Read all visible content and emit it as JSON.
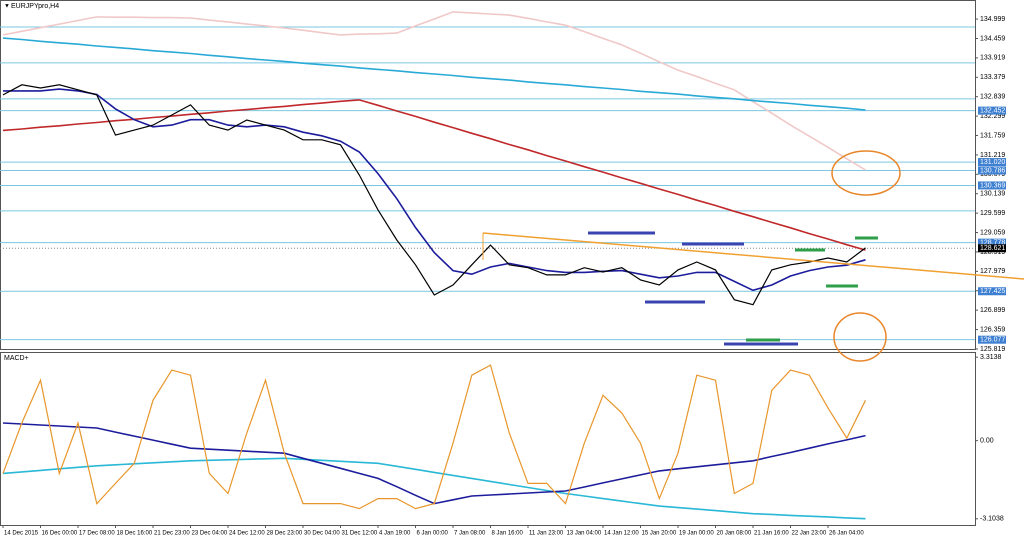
{
  "chart_data": [
    {
      "type": "line",
      "title": "EURJPYpro,H4",
      "ylim": [
        125.79,
        135.53
      ],
      "yticks": [
        134.999,
        134.459,
        133.919,
        133.379,
        132.839,
        132.299,
        131.759,
        131.219,
        130.679,
        130.139,
        129.599,
        129.059,
        128.519,
        127.979,
        127.439,
        126.899,
        126.359,
        125.819
      ],
      "levels": [
        132.452,
        {
          "value": 131.02,
          "label": "131.020"
        },
        130.786,
        130.369,
        128.778,
        127.425,
        126.077
      ],
      "level_color": "#3d7fd1",
      "hlines": [
        134.78,
        133.78,
        132.78,
        129.66
      ],
      "hline_color": "#7cc7e0",
      "current_price": 128.621,
      "series": [
        {
          "color": "#f0c8c8",
          "values": [
            134.56,
            134.66,
            134.76,
            134.86,
            134.96,
            135.06,
            135.05,
            135.05,
            135.04,
            135.04,
            135.03,
            134.97,
            134.92,
            134.86,
            134.81,
            134.75,
            134.69,
            134.62,
            134.56,
            134.58,
            134.59,
            134.61,
            134.81,
            135.0,
            135.2,
            135.17,
            135.14,
            135.11,
            135.02,
            134.92,
            134.83,
            134.65,
            134.46,
            134.28,
            134.05,
            133.81,
            133.58,
            133.4,
            133.21,
            133.03,
            132.7,
            132.38,
            132.05,
            131.74,
            131.43,
            131.11,
            130.8
          ]
        },
        {
          "color": "#29a9d6",
          "values": [
            134.47,
            134.43,
            134.38,
            134.34,
            134.3,
            134.25,
            134.21,
            134.17,
            134.12,
            134.08,
            134.04,
            133.99,
            133.95,
            133.9,
            133.86,
            133.82,
            133.77,
            133.73,
            133.69,
            133.64,
            133.6,
            133.56,
            133.51,
            133.47,
            133.43,
            133.38,
            133.34,
            133.3,
            133.25,
            133.21,
            133.17,
            133.12,
            133.08,
            133.04,
            132.99,
            132.95,
            132.91,
            132.86,
            132.82,
            132.78,
            132.73,
            132.69,
            132.65,
            132.6,
            132.56,
            132.52,
            132.47
          ]
        },
        {
          "color": "#c0282a",
          "values": [
            131.9,
            131.94,
            131.99,
            132.03,
            132.08,
            132.12,
            132.17,
            132.21,
            132.26,
            132.3,
            132.35,
            132.39,
            132.44,
            132.48,
            132.53,
            132.57,
            132.62,
            132.66,
            132.71,
            132.75,
            132.6,
            132.44,
            132.29,
            132.13,
            131.98,
            131.82,
            131.67,
            131.51,
            131.36,
            131.2,
            131.05,
            130.89,
            130.74,
            130.58,
            130.43,
            130.27,
            130.12,
            129.96,
            129.81,
            129.65,
            129.5,
            129.34,
            129.19,
            129.03,
            128.88,
            128.72,
            128.57
          ]
        },
        {
          "color": "#1c1c9c",
          "values": [
            133.0,
            133.0,
            133.0,
            133.05,
            133.0,
            132.9,
            132.5,
            132.2,
            132.0,
            132.05,
            132.2,
            132.2,
            132.05,
            132.0,
            132.05,
            132.0,
            131.85,
            131.75,
            131.6,
            131.3,
            130.7,
            130.0,
            129.2,
            128.5,
            128.0,
            127.9,
            128.1,
            128.2,
            128.1,
            128.0,
            127.95,
            127.95,
            127.98,
            128.0,
            127.9,
            127.8,
            127.85,
            127.95,
            127.95,
            127.7,
            127.45,
            127.6,
            127.85,
            128.0,
            128.1,
            128.15,
            128.3
          ]
        },
        {
          "color": "#000000",
          "values": [
            132.89,
            133.17,
            133.08,
            133.17,
            133.03,
            132.89,
            131.77,
            131.91,
            132.05,
            132.33,
            132.61,
            132.05,
            131.91,
            132.19,
            132.05,
            131.91,
            131.64,
            131.64,
            131.5,
            130.66,
            129.69,
            128.85,
            128.16,
            127.32,
            127.6,
            128.16,
            128.71,
            128.16,
            128.08,
            127.88,
            127.88,
            128.08,
            127.96,
            128.08,
            127.74,
            127.6,
            128.02,
            128.24,
            128.02,
            127.19,
            127.05,
            128.02,
            128.16,
            128.24,
            128.35,
            128.24,
            128.63
          ]
        }
      ]
    },
    {
      "type": "line",
      "title": "MACD+",
      "ylim": [
        -3.35,
        3.52
      ],
      "yticks": [
        3.3138,
        {
          "value": 0,
          "label": "0.00"
        },
        -3.1038
      ],
      "categories": [
        "14 Dec 2015",
        null,
        "16 Dec 00:00",
        null,
        "17 Dec 08:00",
        null,
        "18 Dec 16:00",
        null,
        "21 Dec 23:00",
        null,
        "23 Dec 04:00",
        null,
        "24 Dec 12:00",
        null,
        "28 Dec 23:00",
        null,
        "30 Dec 04:00",
        null,
        "31 Dec 12:00",
        null,
        "4 Jan 19:00",
        null,
        "6 Jan 00:00",
        null,
        "7 Jan 08:00",
        null,
        "8 Jan 16:00",
        null,
        "11 Jan 23:00",
        null,
        "13 Jan 04:00",
        null,
        "14 Jan 12:00",
        null,
        "15 Jan 20:00",
        null,
        "19 Jan 00:00",
        null,
        "20 Jan 08:00",
        null,
        "21 Jan 16:00",
        null,
        "22 Jan 23:00",
        null,
        "26 Jan 04:00",
        null,
        null
      ],
      "series": [
        {
          "color": "#29b8d6",
          "values": [
            -1.3,
            -1.24,
            -1.18,
            -1.12,
            -1.06,
            -1.0,
            -0.96,
            -0.92,
            -0.88,
            -0.84,
            -0.8,
            -0.78,
            -0.76,
            -0.74,
            -0.72,
            -0.7,
            -0.74,
            -0.78,
            -0.82,
            -0.86,
            -0.9,
            -1.02,
            -1.14,
            -1.26,
            -1.38,
            -1.5,
            -1.62,
            -1.74,
            -1.86,
            -1.98,
            -2.1,
            -2.2,
            -2.3,
            -2.4,
            -2.5,
            -2.6,
            -2.66,
            -2.72,
            -2.78,
            -2.84,
            -2.9,
            -2.93,
            -2.97,
            -3.0,
            -3.03,
            -3.07,
            -3.1
          ]
        },
        {
          "color": "#1c1c9c",
          "values": [
            0.7,
            0.66,
            0.62,
            0.58,
            0.54,
            0.5,
            0.34,
            0.18,
            0.02,
            -0.14,
            -0.3,
            -0.34,
            -0.38,
            -0.42,
            -0.46,
            -0.5,
            -0.7,
            -0.9,
            -1.1,
            -1.3,
            -1.5,
            -1.83,
            -2.17,
            -2.5,
            -2.35,
            -2.2,
            -2.16,
            -2.12,
            -2.08,
            -2.04,
            -2.0,
            -1.84,
            -1.68,
            -1.52,
            -1.36,
            -1.2,
            -1.12,
            -1.04,
            -0.96,
            -0.88,
            -0.8,
            -0.63,
            -0.47,
            -0.3,
            -0.13,
            0.03,
            0.2
          ]
        },
        {
          "color": "#e8962a",
          "values": [
            -1.3,
            0.7,
            2.4,
            -1.3,
            0.7,
            -2.5,
            -1.7,
            -0.9,
            1.6,
            2.8,
            2.6,
            -1.3,
            -2.1,
            0.3,
            2.4,
            -0.5,
            -2.5,
            -2.5,
            -2.5,
            -2.7,
            -2.3,
            -2.3,
            -2.7,
            -2.5,
            -0.1,
            2.6,
            3.0,
            0.3,
            -1.7,
            -1.7,
            -2.5,
            -0.1,
            1.8,
            1.1,
            -0.1,
            -2.3,
            -0.5,
            2.6,
            2.4,
            -2.1,
            -1.7,
            2.0,
            2.8,
            2.6,
            1.3,
            0.1,
            1.6
          ]
        }
      ]
    }
  ]
}
